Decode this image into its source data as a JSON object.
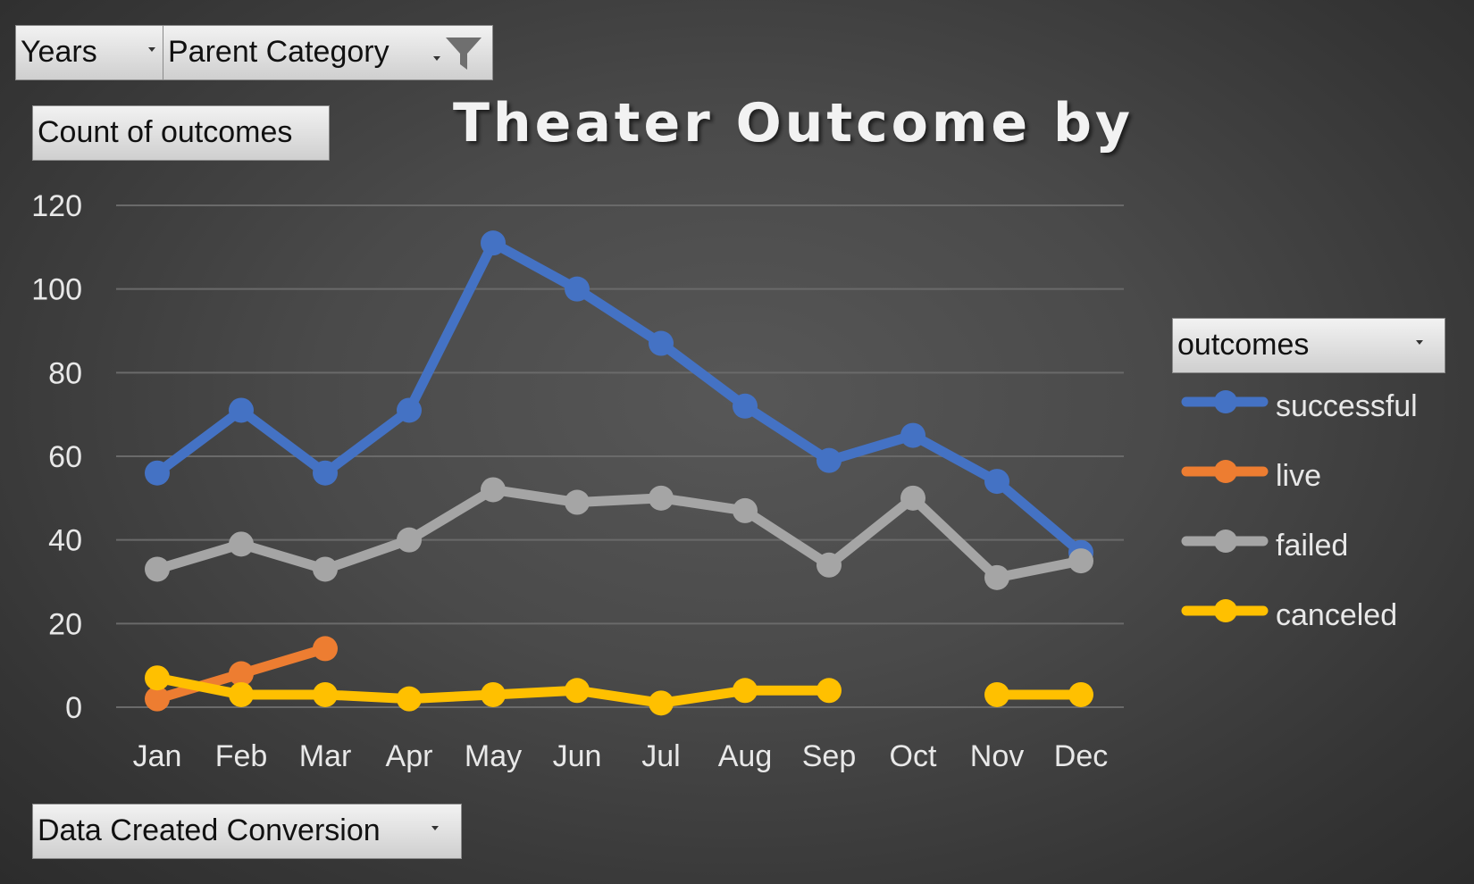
{
  "filters": {
    "years_label": "Years",
    "parent_category_label": "Parent Category",
    "value_field_label": "Count of outcomes",
    "axis_field_label": "Data Created Conversion",
    "legend_field_label": "outcomes"
  },
  "icons": {
    "filter": "filter-funnel-icon",
    "dropdown": "chevron-down-icon"
  },
  "colors": {
    "successful": "#4472C4",
    "live": "#ED7D31",
    "failed": "#A5A5A5",
    "canceled": "#FFC000",
    "gridline": "#6a6a6a",
    "text": "#e8e8e8"
  },
  "chart_data": {
    "type": "line",
    "title": "Theater Outcome by",
    "xlabel": "",
    "ylabel": "",
    "categories": [
      "Jan",
      "Feb",
      "Mar",
      "Apr",
      "May",
      "Jun",
      "Jul",
      "Aug",
      "Sep",
      "Oct",
      "Nov",
      "Dec"
    ],
    "yticks": [
      "0",
      "20",
      "40",
      "60",
      "80",
      "100",
      "120"
    ],
    "ylim": [
      0,
      120
    ],
    "grid": true,
    "legend_position": "right",
    "series": [
      {
        "name": "successful",
        "values": [
          56,
          71,
          56,
          71,
          111,
          100,
          87,
          72,
          59,
          65,
          54,
          37
        ]
      },
      {
        "name": "live",
        "values": [
          2,
          8,
          14,
          null,
          null,
          null,
          null,
          null,
          null,
          null,
          null,
          null
        ]
      },
      {
        "name": "failed",
        "values": [
          33,
          39,
          33,
          40,
          52,
          49,
          50,
          47,
          34,
          50,
          31,
          35
        ]
      },
      {
        "name": "canceled",
        "values": [
          7,
          3,
          3,
          2,
          3,
          4,
          1,
          4,
          4,
          null,
          3,
          3
        ]
      }
    ]
  }
}
